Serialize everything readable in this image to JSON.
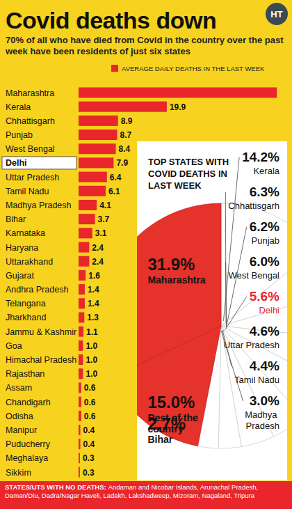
{
  "header": {
    "title": "Covid deaths down",
    "subtitle": "70% of all who have died from Covid in the country over the past week have been residents of just six states",
    "logo": "HT"
  },
  "chart_data": [
    {
      "type": "bar",
      "orientation": "horizontal",
      "categories": [
        "Maharashtra",
        "Kerala",
        "Chhattisgarh",
        "Punjab",
        "West Bengal",
        "Delhi",
        "Uttar Pradesh",
        "Tamil Nadu",
        "Madhya Pradesh",
        "Bihar",
        "Karnataka",
        "Haryana",
        "Uttarakhand",
        "Gujarat",
        "Andhra Pradesh",
        "Telangana",
        "Jharkhand",
        "Jammu & Kashmir",
        "Goa",
        "Himachal Pradesh",
        "Rajasthan",
        "Assam",
        "Chandigarh",
        "Odisha",
        "Manipur",
        "Puducherry",
        "Meghalaya",
        "Sikkim"
      ],
      "series": [
        {
          "name": "AVERAGE DAILY DEATHS IN THE LAST WEEK",
          "color": "#e8262b",
          "values": [
            44.7,
            19.9,
            8.9,
            8.7,
            8.4,
            7.9,
            6.4,
            6.1,
            4.1,
            3.7,
            3.1,
            2.4,
            2.4,
            1.6,
            1.4,
            1.4,
            1.3,
            1.1,
            1.0,
            1.0,
            1.0,
            0.6,
            0.6,
            0.6,
            0.4,
            0.4,
            0.3,
            0.3
          ],
          "value_labels": [
            null,
            "19.9",
            "8.9",
            "8.7",
            "8.4",
            "7.9",
            "6.4",
            "6.1",
            "4.1",
            "3.7",
            "3.1",
            "2.4",
            "2.4",
            "1.6",
            "1.4",
            "1.4",
            "1.3",
            "1.1",
            "1.0",
            "1.0",
            "1.0",
            "0.6",
            "0.6",
            "0.6",
            "0.4",
            "0.4",
            "0.3",
            "0.3"
          ]
        }
      ],
      "xlim": [
        0,
        45
      ],
      "data_labels": true,
      "tick_labels": false,
      "legend": "top"
    },
    {
      "type": "pie",
      "title": "TOP STATES WITH COVID DEATHS IN LAST WEEK",
      "categories": [
        "Kerala",
        "Chhattisgarh",
        "Punjab",
        "West Bengal",
        "Delhi",
        "Uttar Pradesh",
        "Tamil Nadu",
        "Madhya Pradesh",
        "Bihar",
        "Rest of the country",
        "Maharashtra"
      ],
      "values": [
        14.2,
        6.3,
        6.2,
        6.0,
        5.6,
        4.6,
        4.4,
        3.0,
        2.7,
        15.0,
        31.9
      ],
      "value_labels": [
        "14.2%",
        "6.3%",
        "6.2%",
        "6.0%",
        "5.6%",
        "4.6%",
        "4.4%",
        "3.0%",
        "2.7%",
        "15.0%",
        "31.9%"
      ],
      "colors": [
        "#ffffff",
        "#ffffff",
        "#ffffff",
        "#ffffff",
        "#ffffff",
        "#ffffff",
        "#ffffff",
        "#ffffff",
        "#ffffff",
        "#e5322a",
        "#e5322a"
      ],
      "data_labels": true
    }
  ],
  "footer": {
    "label": "STATES/UTS WITH NO DEATHS:",
    "text": "Andaman and Nicobar Islands, Arunachal Pradesh, Daman/Diu, Dadra/Nagar Haveli, Ladakh, Lakshadweep, Mizoram, Nagaland, Tripura"
  }
}
